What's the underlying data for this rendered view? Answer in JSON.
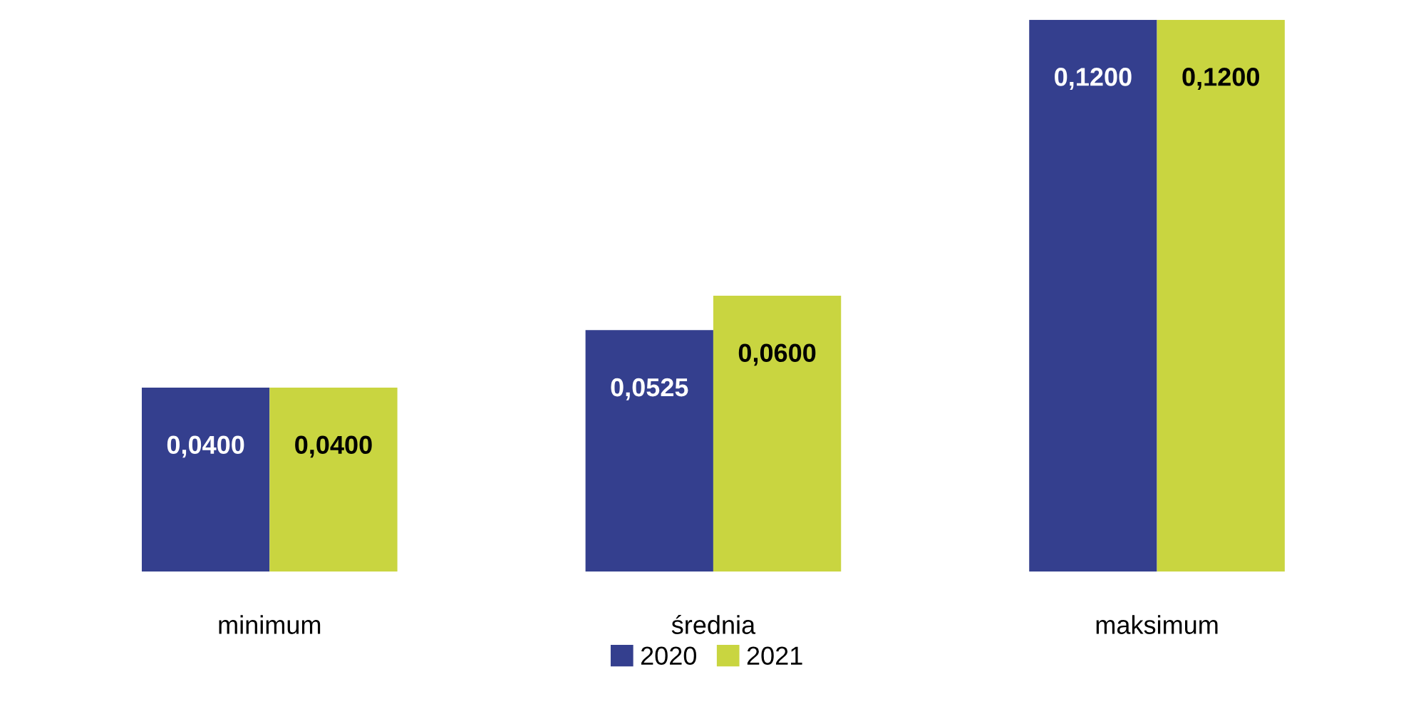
{
  "chart_data": {
    "type": "bar",
    "categories": [
      "minimum",
      "średnia",
      "maksimum"
    ],
    "series": [
      {
        "name": "2020",
        "color": "#343f8e",
        "values": [
          0.04,
          0.0525,
          0.12
        ],
        "value_labels": [
          "0,0400",
          "0,0525",
          "0,1200"
        ]
      },
      {
        "name": "2021",
        "color": "#c9d540",
        "values": [
          0.04,
          0.06,
          0.12
        ],
        "value_labels": [
          "0,0400",
          "0,0600",
          "0,1200"
        ]
      }
    ],
    "ylim": [
      0,
      0.12
    ],
    "tick_labels": "x",
    "grid": false,
    "legend": "bottom"
  }
}
